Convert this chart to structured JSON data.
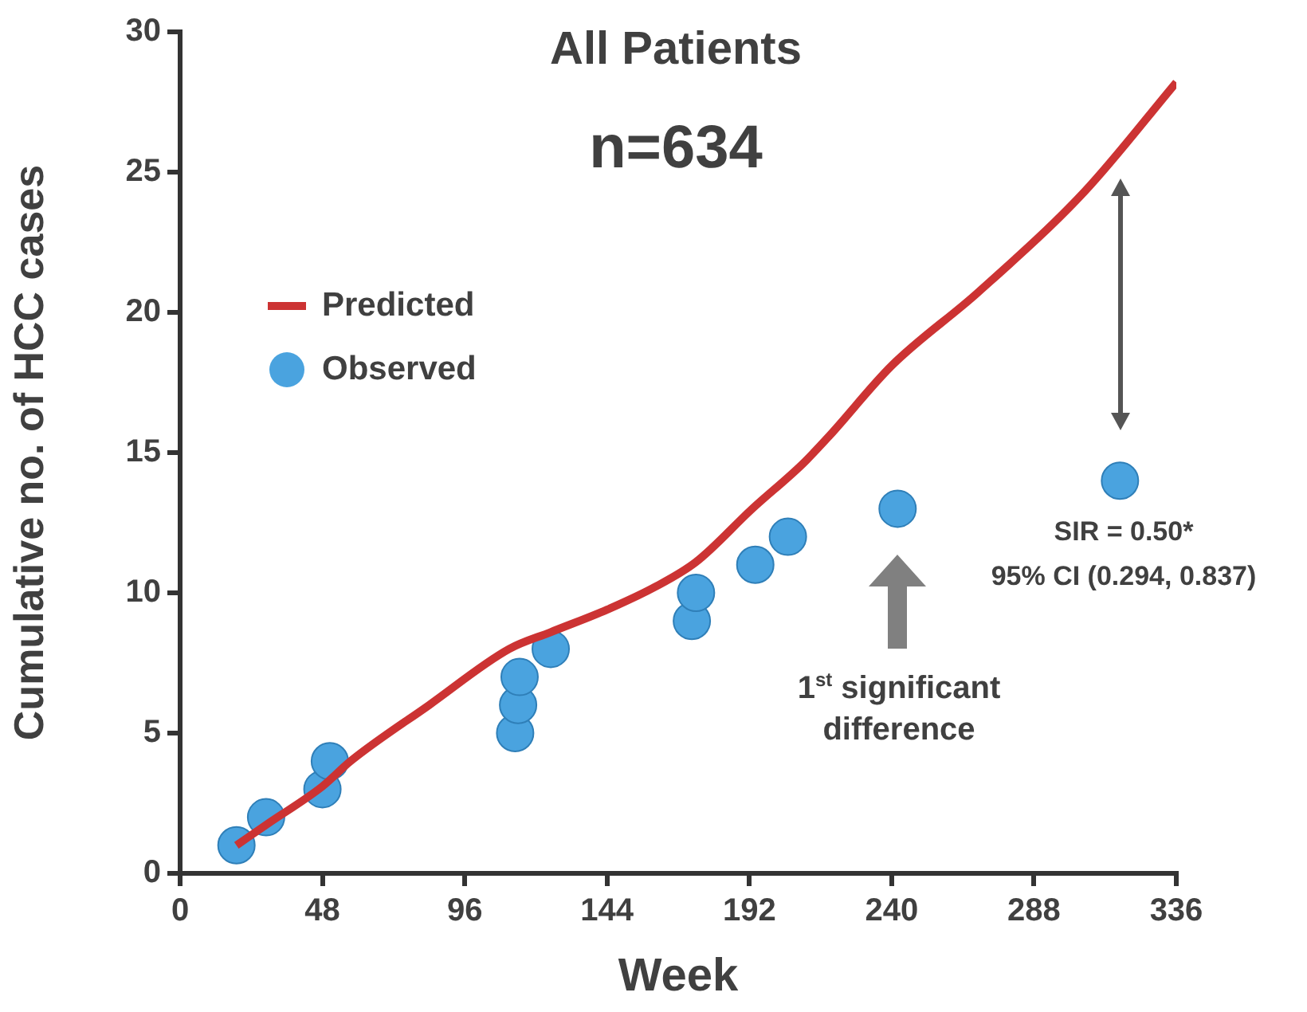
{
  "chart_data": {
    "type": "scatter",
    "title": "All Patients",
    "subtitle": "n=634",
    "xlabel": "Week",
    "ylabel": "Cumulative no. of HCC cases",
    "xlim": [
      0,
      336
    ],
    "xticks": [
      0,
      48,
      96,
      144,
      192,
      240,
      288,
      336
    ],
    "ylim": [
      0,
      30
    ],
    "yticks": [
      0,
      5,
      10,
      15,
      20,
      25,
      30
    ],
    "grid": false,
    "legend": "top left",
    "series": [
      {
        "name": "Predicted",
        "type": "line",
        "marker": "none",
        "color": "#cc3333",
        "x": [
          19,
          30,
          48,
          57.5,
          84,
          111,
          125,
          144,
          160,
          174,
          193,
          210,
          219,
          240,
          269,
          305,
          336
        ],
        "values": [
          1.0,
          1.8,
          3.1,
          4.0,
          6.0,
          8.0,
          8.6,
          9.4,
          10.2,
          11.1,
          13.0,
          14.6,
          15.6,
          18.1,
          20.7,
          24.3,
          28.2
        ]
      },
      {
        "name": "Observed",
        "marker": "circle",
        "color": "#4aa3df",
        "x": [
          19,
          29,
          48,
          50.5,
          113,
          114,
          114.5,
          125,
          172.6,
          174,
          194,
          205,
          242,
          317
        ],
        "values": [
          1,
          2,
          3,
          4,
          5,
          6,
          7,
          8,
          9,
          10,
          11,
          12,
          13,
          14
        ]
      }
    ],
    "annotations": [
      "SIR = 0.50*",
      "95% CI (0.294, 0.837)",
      "1$^{st}$ significant difference"
    ]
  }
}
